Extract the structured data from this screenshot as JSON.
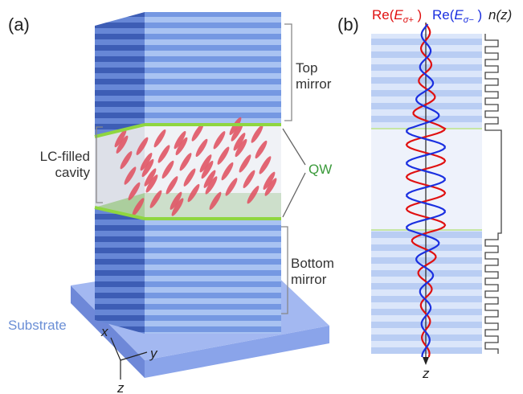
{
  "panel_a": {
    "label": "(a)",
    "top_mirror": [
      "Top",
      "mirror"
    ],
    "cavity": [
      "LC-filled",
      "cavity"
    ],
    "quantum_well": "QW",
    "bottom_mirror": [
      "Bottom",
      "mirror"
    ],
    "substrate": "Substrate",
    "axes": {
      "x": "x",
      "y": "y",
      "z": "z"
    }
  },
  "panel_b": {
    "label": "(b)",
    "field_plus": {
      "prefix": "Re(",
      "symbol": "E",
      "subscript": "σ+",
      "suffix": " )"
    },
    "field_minus": {
      "prefix": "Re(",
      "symbol": "E",
      "subscript": "σ−",
      "suffix": " )"
    },
    "index": "n(z)",
    "axis": "z"
  }
}
